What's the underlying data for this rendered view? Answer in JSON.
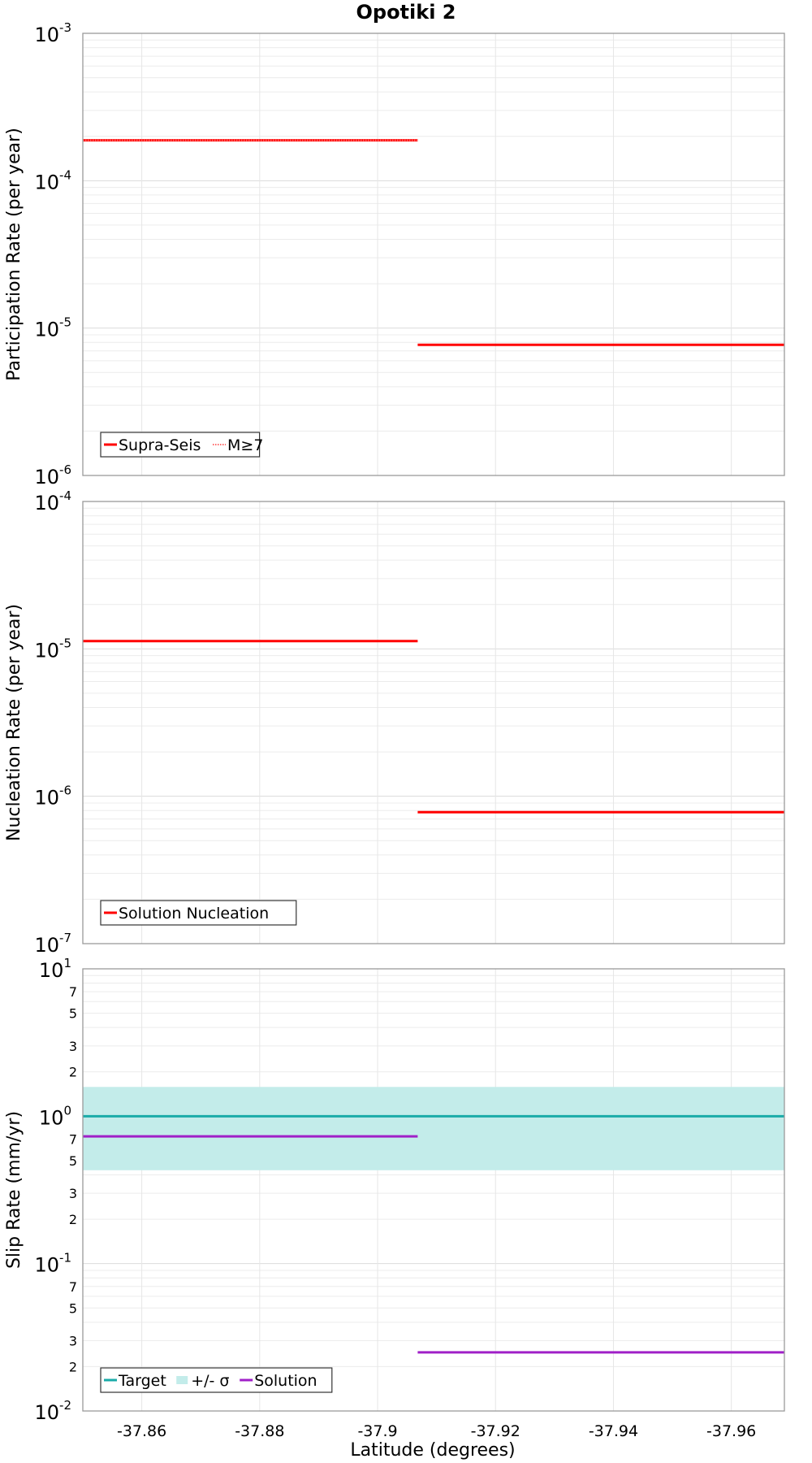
{
  "figure": {
    "title": "Opotiki 2",
    "xlabel": "Latitude (degrees)",
    "x_tick_labels": [
      "-37.86",
      "-37.88",
      "-37.9",
      "-37.92",
      "-37.94",
      "-37.96"
    ]
  },
  "chart_data": [
    {
      "type": "line",
      "title": "Opotiki 2",
      "ylabel": "Participation Rate (per year)",
      "yscale": "log",
      "ylim": [
        1e-06,
        0.001
      ],
      "xlim": [
        -37.85,
        -37.969
      ],
      "x_ticks": [
        -37.86,
        -37.88,
        -37.9,
        -37.92,
        -37.94,
        -37.96
      ],
      "y_ticks": [
        {
          "value": 0.001,
          "base": "10",
          "exp": "-3"
        },
        {
          "value": 0.0001,
          "base": "10",
          "exp": "-4"
        },
        {
          "value": 1e-05,
          "base": "10",
          "exp": "-5"
        },
        {
          "value": 1e-06,
          "base": "10",
          "exp": "-6"
        }
      ],
      "grid": true,
      "legend_placement": "bottom-left",
      "series": [
        {
          "name": "Supra-Seis",
          "color": "#ff0000",
          "style": "solid",
          "segments": [
            {
              "x": [
                -37.85,
                -37.9068
              ],
              "y": 0.000188
            },
            {
              "x": [
                -37.9068,
                -37.969
              ],
              "y": 7.7e-06
            }
          ]
        },
        {
          "name": "M≥7",
          "color": "#ff0000",
          "style": "dotted",
          "segments": [
            {
              "x": [
                -37.85,
                -37.9068
              ],
              "y": 0.000188
            }
          ]
        }
      ]
    },
    {
      "type": "line",
      "ylabel": "Nucleation Rate (per year)",
      "yscale": "log",
      "ylim": [
        1e-07,
        0.0001
      ],
      "xlim": [
        -37.85,
        -37.969
      ],
      "x_ticks": [
        -37.86,
        -37.88,
        -37.9,
        -37.92,
        -37.94,
        -37.96
      ],
      "y_ticks": [
        {
          "value": 0.0001,
          "base": "10",
          "exp": "-4"
        },
        {
          "value": 1e-05,
          "base": "10",
          "exp": "-5"
        },
        {
          "value": 1e-06,
          "base": "10",
          "exp": "-6"
        },
        {
          "value": 1e-07,
          "base": "10",
          "exp": "-7"
        }
      ],
      "grid": true,
      "legend_placement": "bottom-left",
      "series": [
        {
          "name": "Solution Nucleation",
          "color": "#ff0000",
          "style": "solid",
          "segments": [
            {
              "x": [
                -37.85,
                -37.9068
              ],
              "y": 1.13e-05
            },
            {
              "x": [
                -37.9068,
                -37.969
              ],
              "y": 7.8e-07
            }
          ]
        }
      ]
    },
    {
      "type": "line",
      "ylabel": "Slip Rate (mm/yr)",
      "xlabel": "Latitude (degrees)",
      "yscale": "log",
      "ylim": [
        0.01,
        10
      ],
      "xlim": [
        -37.85,
        -37.969
      ],
      "x_ticks": [
        -37.86,
        -37.88,
        -37.9,
        -37.92,
        -37.94,
        -37.96
      ],
      "y_ticks": [
        {
          "value": 10,
          "base": "10",
          "exp": "1"
        },
        {
          "value": 1,
          "base": "10",
          "exp": "0"
        },
        {
          "value": 0.1,
          "base": "10",
          "exp": "-1"
        },
        {
          "value": 0.01,
          "base": "10",
          "exp": "-2"
        }
      ],
      "y_minor_labels": [
        {
          "value": 7,
          "label": "7"
        },
        {
          "value": 5,
          "label": "5"
        },
        {
          "value": 3,
          "label": "3"
        },
        {
          "value": 2,
          "label": "2"
        },
        {
          "value": 0.7,
          "label": "7"
        },
        {
          "value": 0.5,
          "label": "5"
        },
        {
          "value": 0.3,
          "label": "3"
        },
        {
          "value": 0.2,
          "label": "2"
        },
        {
          "value": 0.07,
          "label": "7"
        },
        {
          "value": 0.05,
          "label": "5"
        },
        {
          "value": 0.03,
          "label": "3"
        },
        {
          "value": 0.02,
          "label": "2"
        }
      ],
      "grid": true,
      "legend_placement": "bottom-left",
      "bands": [
        {
          "name": "+/- σ",
          "color": "#c3ecea",
          "x": [
            -37.85,
            -37.969
          ],
          "y": [
            0.43,
            1.58
          ]
        }
      ],
      "series": [
        {
          "name": "Target",
          "color": "#1aaba8",
          "style": "solid",
          "segments": [
            {
              "x": [
                -37.85,
                -37.969
              ],
              "y": 1.0
            }
          ]
        },
        {
          "name": "Solution",
          "color": "#a020c8",
          "style": "solid",
          "segments": [
            {
              "x": [
                -37.85,
                -37.9068
              ],
              "y": 0.73
            },
            {
              "x": [
                -37.9068,
                -37.969
              ],
              "y": 0.025
            }
          ]
        }
      ],
      "legend_order": [
        "Target",
        "+/- σ",
        "Solution"
      ]
    }
  ]
}
